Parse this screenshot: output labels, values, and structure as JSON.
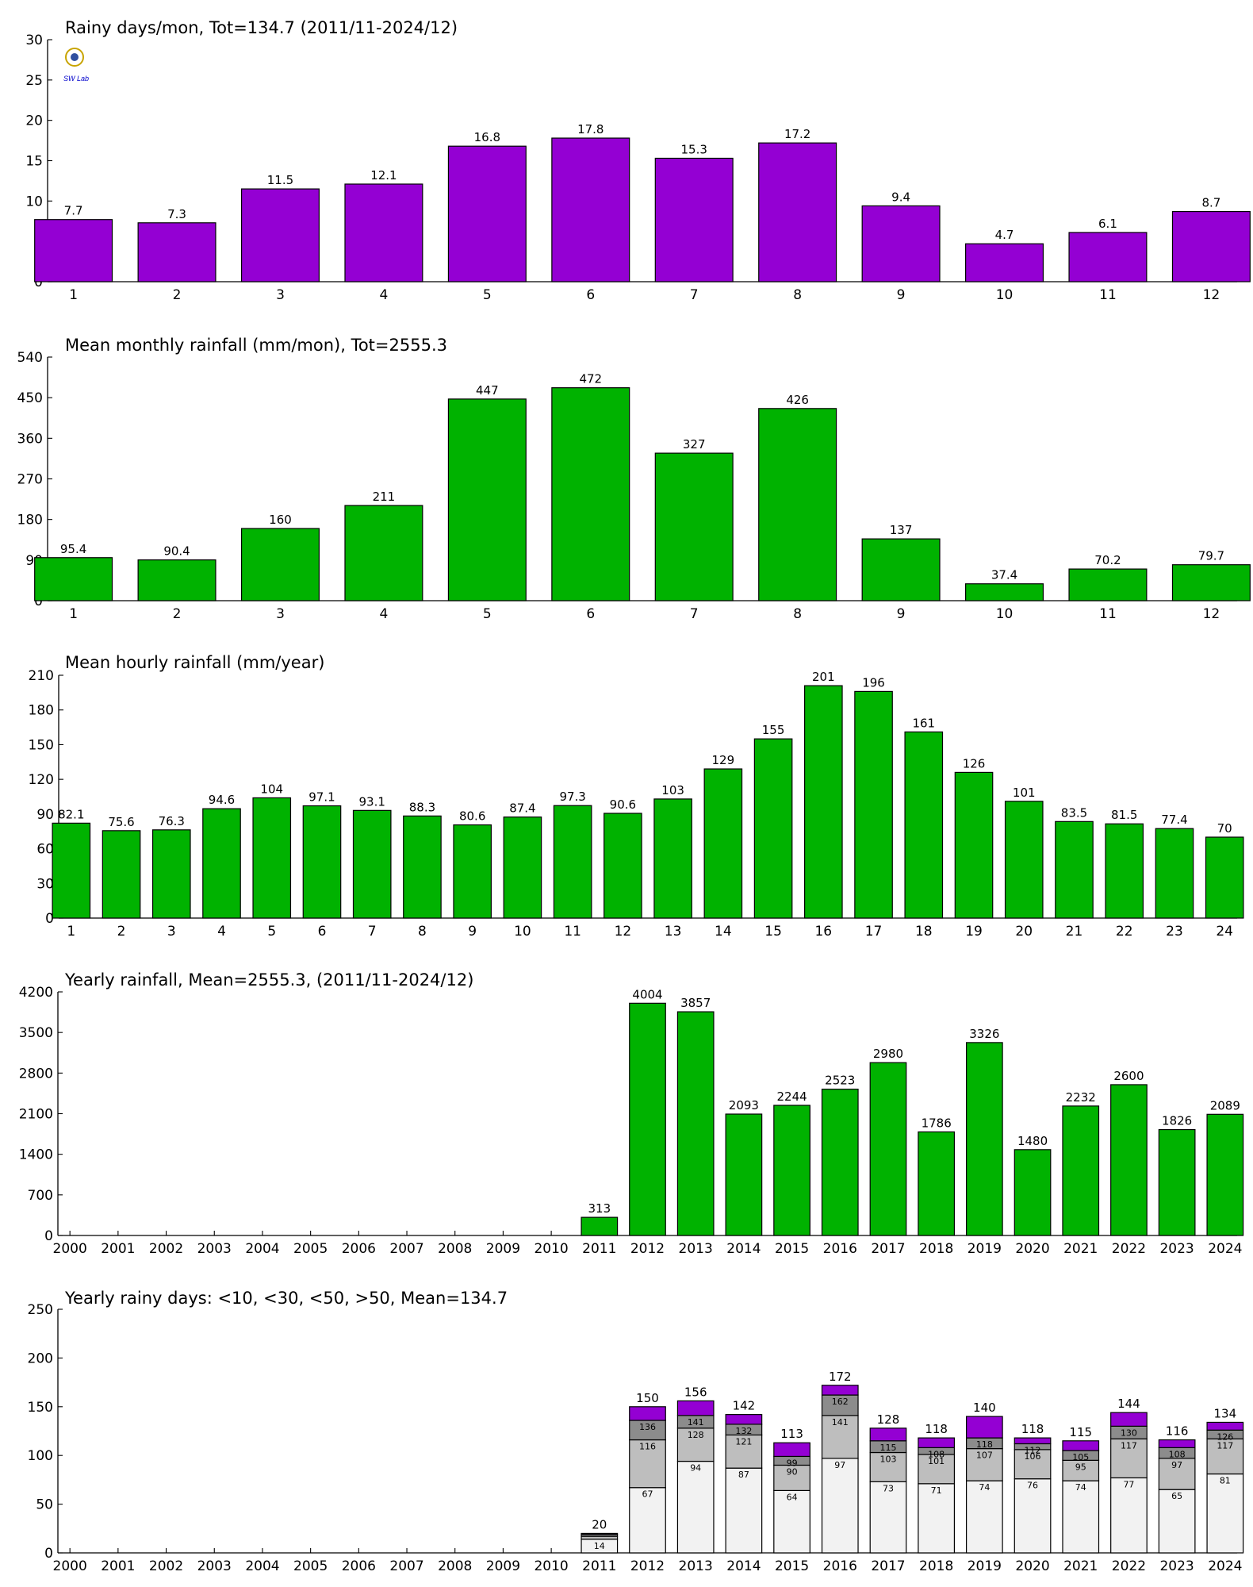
{
  "colors": {
    "purple": "#9400d3",
    "green": "#00b200",
    "seg_lt10": "#f2f2f2",
    "seg_lt30": "#bebebe",
    "seg_lt50": "#8c8c8c",
    "seg_gt50": "#9400d3"
  },
  "logo": {
    "text": "SW Lab",
    "icon": "lab-logo-icon"
  },
  "chart_data": [
    {
      "type": "bar",
      "title": "Rainy days/mon, Tot=134.7 (2011/11-2024/12)",
      "categories": [
        "1",
        "2",
        "3",
        "4",
        "5",
        "6",
        "7",
        "8",
        "9",
        "10",
        "11",
        "12"
      ],
      "values": [
        7.7,
        7.3,
        11.5,
        12.1,
        16.8,
        17.8,
        15.3,
        17.2,
        9.4,
        4.7,
        6.1,
        8.7
      ],
      "labels": [
        "7.7",
        "7.3",
        "11.5",
        "12.1",
        "16.8",
        "17.8",
        "15.3",
        "17.2",
        "9.4",
        "4.7",
        "6.1",
        "8.7"
      ],
      "ylim": [
        0,
        30
      ],
      "yticks": [
        0,
        5,
        10,
        15,
        20,
        25,
        30
      ],
      "color": "#9400d3"
    },
    {
      "type": "bar",
      "title": "Mean monthly rainfall (mm/mon), Tot=2555.3",
      "categories": [
        "1",
        "2",
        "3",
        "4",
        "5",
        "6",
        "7",
        "8",
        "9",
        "10",
        "11",
        "12"
      ],
      "values": [
        95.4,
        90.4,
        160,
        211,
        447,
        472,
        327,
        426,
        137,
        37.4,
        70.2,
        79.7
      ],
      "labels": [
        "95.4",
        "90.4",
        "160",
        "211",
        "447",
        "472",
        "327",
        "426",
        "137",
        "37.4",
        "70.2",
        "79.7"
      ],
      "ylim": [
        0,
        540
      ],
      "yticks": [
        0,
        90,
        180,
        270,
        360,
        450,
        540
      ],
      "color": "#00b200"
    },
    {
      "type": "bar",
      "title": "Mean hourly rainfall (mm/year)",
      "categories": [
        "1",
        "2",
        "3",
        "4",
        "5",
        "6",
        "7",
        "8",
        "9",
        "10",
        "11",
        "12",
        "13",
        "14",
        "15",
        "16",
        "17",
        "18",
        "19",
        "20",
        "21",
        "22",
        "23",
        "24"
      ],
      "values": [
        82.1,
        75.6,
        76.3,
        94.6,
        104,
        97.1,
        93.1,
        88.3,
        80.6,
        87.4,
        97.3,
        90.6,
        103,
        129,
        155,
        201,
        196,
        161,
        126,
        101,
        83.5,
        81.5,
        77.4,
        70
      ],
      "labels": [
        "82.1",
        "75.6",
        "76.3",
        "94.6",
        "104",
        "97.1",
        "93.1",
        "88.3",
        "80.6",
        "87.4",
        "97.3",
        "90.6",
        "103",
        "129",
        "155",
        "201",
        "196",
        "161",
        "126",
        "101",
        "83.5",
        "81.5",
        "77.4",
        "70"
      ],
      "ylim": [
        0,
        210
      ],
      "yticks": [
        0,
        30,
        60,
        90,
        120,
        150,
        180,
        210
      ],
      "color": "#00b200"
    },
    {
      "type": "bar",
      "title": "Yearly rainfall, Mean=2555.3, (2011/11-2024/12)",
      "categories": [
        "2000",
        "2001",
        "2002",
        "2003",
        "2004",
        "2005",
        "2006",
        "2007",
        "2008",
        "2009",
        "2010",
        "2011",
        "2012",
        "2013",
        "2014",
        "2015",
        "2016",
        "2017",
        "2018",
        "2019",
        "2020",
        "2021",
        "2022",
        "2023",
        "2024"
      ],
      "values": [
        null,
        null,
        null,
        null,
        null,
        null,
        null,
        null,
        null,
        null,
        null,
        313,
        4004,
        3857,
        2093,
        2244,
        2523,
        2980,
        1786,
        3326,
        1480,
        2232,
        2600,
        1826,
        2089
      ],
      "labels": [
        "",
        "",
        "",
        "",
        "",
        "",
        "",
        "",
        "",
        "",
        "",
        "313",
        "4004",
        "3857",
        "2093",
        "2244",
        "2523",
        "2980",
        "1786",
        "3326",
        "1480",
        "2232",
        "2600",
        "1826",
        "2089"
      ],
      "ylim": [
        0,
        4200
      ],
      "yticks": [
        0,
        700,
        1400,
        2100,
        2800,
        3500,
        4200
      ],
      "color": "#00b200"
    },
    {
      "type": "bar",
      "stacked": true,
      "title": "Yearly rainy days: <10, <30, <50, >50, Mean=134.7",
      "categories": [
        "2000",
        "2001",
        "2002",
        "2003",
        "2004",
        "2005",
        "2006",
        "2007",
        "2008",
        "2009",
        "2010",
        "2011",
        "2012",
        "2013",
        "2014",
        "2015",
        "2016",
        "2017",
        "2018",
        "2019",
        "2020",
        "2021",
        "2022",
        "2023",
        "2024"
      ],
      "cumulative": {
        "lt10": [
          null,
          null,
          null,
          null,
          null,
          null,
          null,
          null,
          null,
          null,
          null,
          14,
          67,
          94,
          87,
          64,
          97,
          73,
          71,
          74,
          76,
          74,
          77,
          65,
          81
        ],
        "lt30": [
          null,
          null,
          null,
          null,
          null,
          null,
          null,
          null,
          null,
          null,
          null,
          17,
          116,
          128,
          121,
          90,
          141,
          103,
          101,
          107,
          106,
          95,
          117,
          97,
          117
        ],
        "lt50": [
          null,
          null,
          null,
          null,
          null,
          null,
          null,
          null,
          null,
          null,
          null,
          19,
          136,
          141,
          132,
          99,
          162,
          115,
          108,
          118,
          112,
          105,
          130,
          108,
          126
        ],
        "total": [
          null,
          null,
          null,
          null,
          null,
          null,
          null,
          null,
          null,
          null,
          null,
          20,
          150,
          156,
          142,
          113,
          172,
          128,
          118,
          140,
          118,
          115,
          144,
          116,
          134
        ]
      },
      "segment_labels": {
        "lt10": [
          "",
          "",
          "",
          "",
          "",
          "",
          "",
          "",
          "",
          "",
          "",
          "14",
          "67",
          "94",
          "87",
          "64",
          "97",
          "73",
          "71",
          "74",
          "76",
          "74",
          "77",
          "65",
          "81"
        ],
        "lt30": [
          "",
          "",
          "",
          "",
          "",
          "",
          "",
          "",
          "",
          "",
          "",
          "",
          "116",
          "128",
          "121",
          "90",
          "141",
          "103",
          "101",
          "107",
          "106",
          "95",
          "117",
          "97",
          "117"
        ],
        "lt50": [
          "",
          "",
          "",
          "",
          "",
          "",
          "",
          "",
          "",
          "",
          "",
          "",
          "136",
          "141",
          "132",
          "99",
          "162",
          "115",
          "108",
          "118",
          "112",
          "105",
          "130",
          "108",
          "126"
        ],
        "total": [
          "",
          "",
          "",
          "",
          "",
          "",
          "",
          "",
          "",
          "",
          "",
          "20",
          "150",
          "156",
          "142",
          "113",
          "172",
          "128",
          "118",
          "140",
          "118",
          "115",
          "144",
          "116",
          "134"
        ]
      },
      "ylim": [
        0,
        250
      ],
      "yticks": [
        0,
        50,
        100,
        150,
        200,
        250
      ]
    }
  ]
}
